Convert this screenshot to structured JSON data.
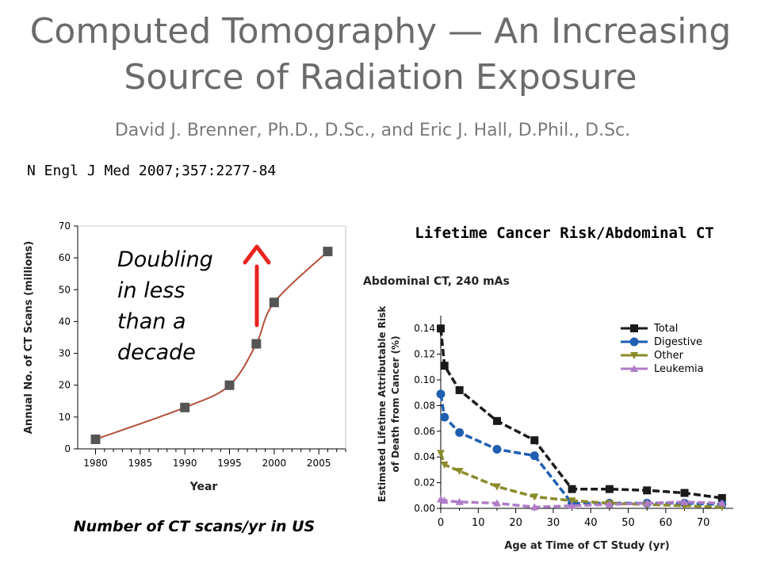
{
  "header": {
    "title_line1": "Computed Tomography — An Increasing",
    "title_line2": "Source of Radiation Exposure",
    "authors": "David J. Brenner, Ph.D., D.Sc., and Eric J. Hall, D.Phil., D.Sc.",
    "citation": "N Engl J Med 2007;357:2277-84"
  },
  "chart_data": [
    {
      "type": "line",
      "ylabel": "Annual No. of CT Scans (millions)",
      "xlabel": "Year",
      "caption": "Number of CT scans/yr in US",
      "xlim": [
        1978,
        2008
      ],
      "ylim": [
        0,
        70
      ],
      "x_ticks": [
        1980,
        1985,
        1990,
        1995,
        2000,
        2005
      ],
      "y_ticks": [
        0,
        10,
        20,
        30,
        40,
        50,
        60,
        70
      ],
      "series": [
        {
          "x": [
            1980,
            1990,
            1995,
            1998,
            2000,
            2006
          ],
          "y": [
            3,
            13,
            20,
            33,
            46,
            62
          ]
        }
      ],
      "annotation": {
        "lines": [
          "Doubling",
          "in less",
          "than a",
          "decade"
        ],
        "arrow": "up",
        "arrow_color": "#e8231f"
      },
      "marker_color": "#555555",
      "line_color": "#b5523a"
    },
    {
      "type": "line",
      "heading": "Lifetime Cancer Risk/Abdominal CT",
      "title": "Abdominal CT, 240 mAs",
      "ylabel": "Estimated Lifetime Attributable Risk of Death from Cancer (%)",
      "xlabel": "Age at Time of CT Study (yr)",
      "xlim": [
        0,
        78
      ],
      "ylim": [
        0,
        0.15
      ],
      "x_ticks": [
        0,
        10,
        20,
        30,
        40,
        50,
        60,
        70
      ],
      "y_ticks": [
        "0.00",
        "0.02",
        "0.04",
        "0.06",
        "0.08",
        "0.10",
        "0.12",
        "0.14"
      ],
      "legend_position": "top-right",
      "series": [
        {
          "name": "Total",
          "color": "#1a1a1a",
          "marker": "square",
          "x": [
            0,
            1,
            5,
            15,
            25,
            35,
            45,
            55,
            65,
            75
          ],
          "y": [
            0.14,
            0.111,
            0.092,
            0.068,
            0.053,
            0.015,
            0.015,
            0.014,
            0.012,
            0.008
          ]
        },
        {
          "name": "Digestive",
          "color": "#1f5fb0",
          "marker": "circle",
          "x": [
            0,
            1,
            5,
            15,
            25,
            35,
            45,
            55,
            65,
            75
          ],
          "y": [
            0.089,
            0.071,
            0.059,
            0.046,
            0.041,
            0.004,
            0.004,
            0.004,
            0.004,
            0.003
          ]
        },
        {
          "name": "Other",
          "color": "#8b8a2a",
          "marker": "triangle-down",
          "x": [
            0,
            1,
            5,
            15,
            25,
            35,
            45,
            55,
            65,
            75
          ],
          "y": [
            0.043,
            0.034,
            0.029,
            0.017,
            0.009,
            0.006,
            0.004,
            0.003,
            0.002,
            0.001
          ]
        },
        {
          "name": "Leukemia",
          "color": "#b17cc9",
          "marker": "triangle-up",
          "x": [
            0,
            1,
            5,
            15,
            25,
            35,
            45,
            55,
            65,
            75
          ],
          "y": [
            0.007,
            0.006,
            0.005,
            0.004,
            0.001,
            0.002,
            0.003,
            0.004,
            0.005,
            0.004
          ]
        }
      ]
    }
  ]
}
